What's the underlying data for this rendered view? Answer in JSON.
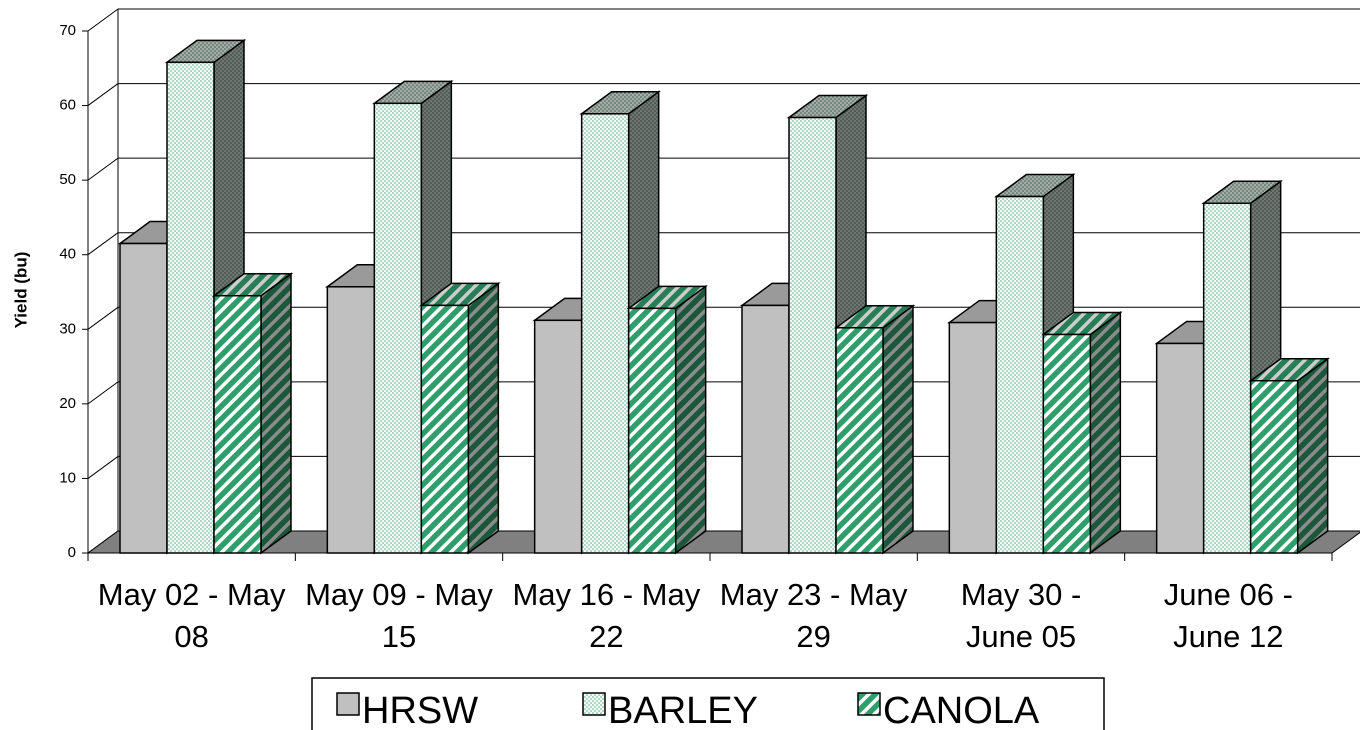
{
  "chart_data": {
    "type": "bar3d",
    "y_label": "Yield (bu)",
    "categories": [
      "May 02 - May 08",
      "May 09 - May 15",
      "May 16 - May 22",
      "May 23 - May 29",
      "May 30 - June 05",
      "June 06 - June 12"
    ],
    "series": [
      {
        "name": "HRSW",
        "color": "#c0c0c0",
        "pattern": "solid",
        "values": [
          41.5,
          35.7,
          31.2,
          33.2,
          30.9,
          28.1
        ]
      },
      {
        "name": "BARLEY",
        "color": "#5fae8c",
        "pattern": "dots",
        "values": [
          65.8,
          60.3,
          58.9,
          58.4,
          47.8,
          46.9
        ]
      },
      {
        "name": "CANOLA",
        "color": "#2f9e6b",
        "pattern": "stripes",
        "values": [
          34.5,
          33.2,
          32.8,
          30.2,
          29.3,
          23.1
        ]
      }
    ],
    "ylim": [
      0,
      70
    ],
    "yticks": [
      0,
      10,
      20,
      30,
      40,
      50,
      60,
      70
    ],
    "grid": true,
    "legend": "bottom"
  }
}
